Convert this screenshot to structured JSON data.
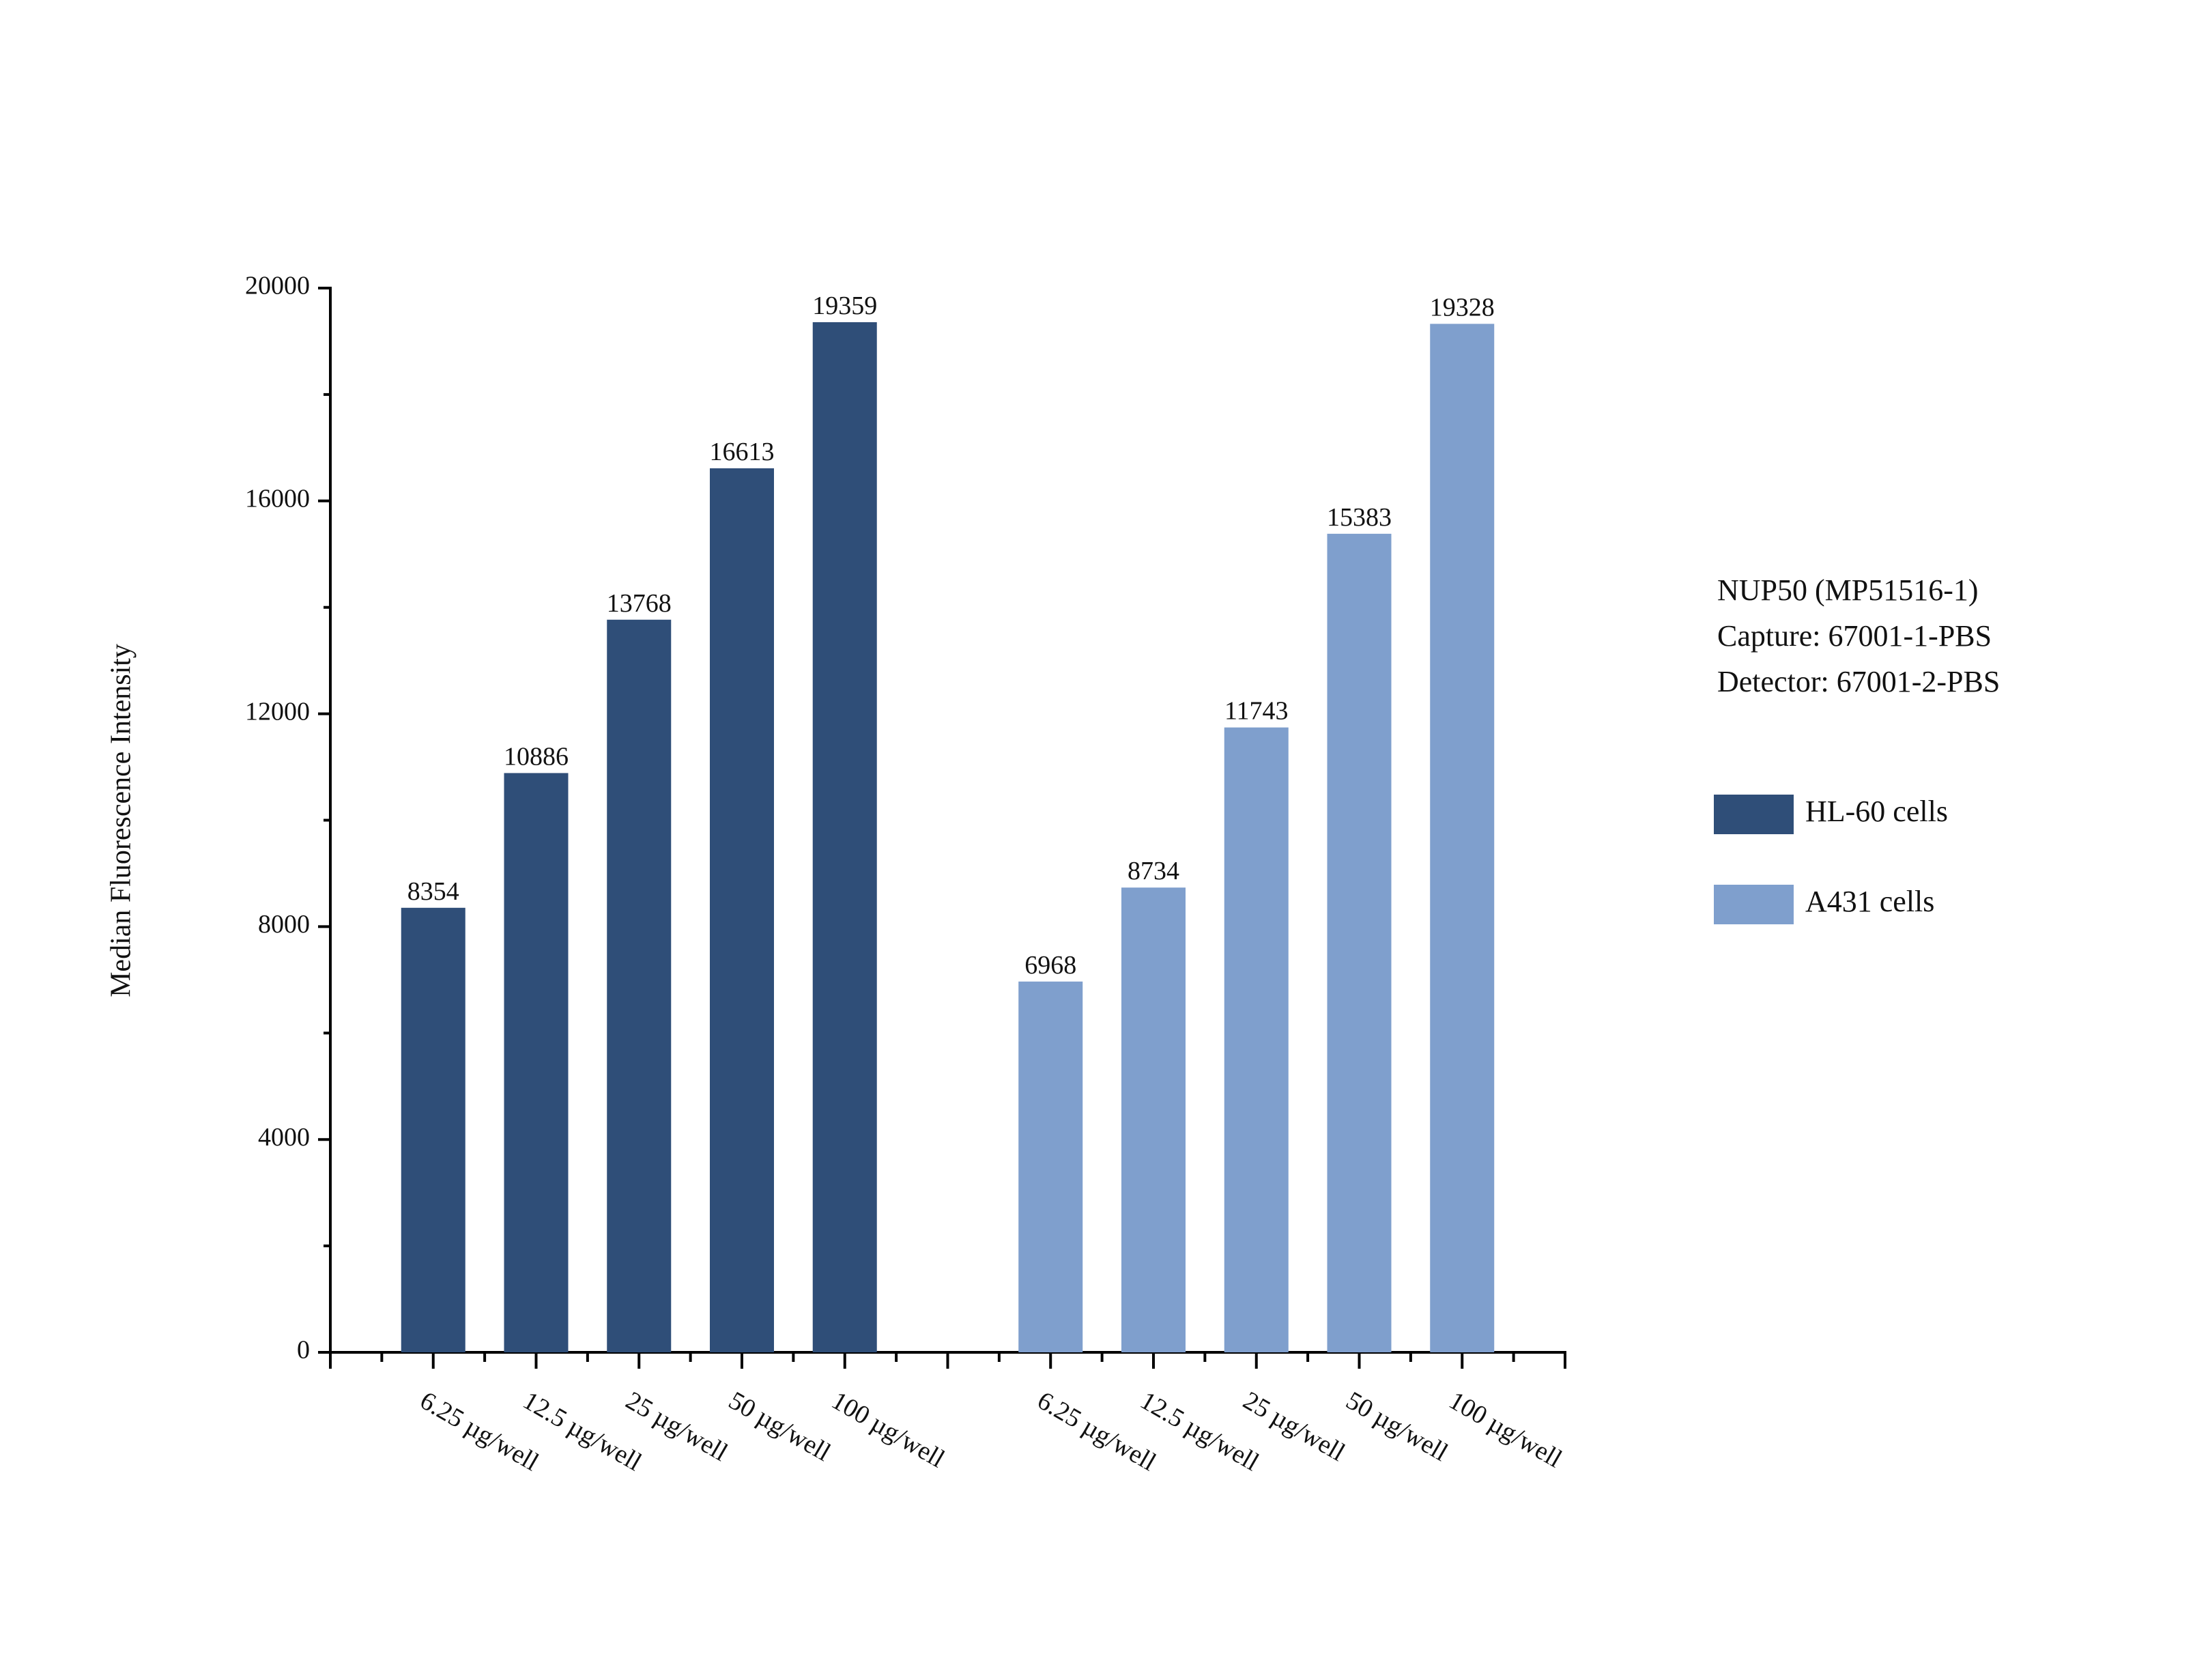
{
  "chart_data": {
    "type": "bar",
    "y_label": "Median Fluorescence Intensity",
    "annotations": [
      "NUP50 (MP51516-1)",
      "Capture: 67001-1-PBS",
      "Detector: 67001-2-PBS"
    ],
    "categories": [
      "6.25 µg/well",
      "12.5 µg/well",
      "25 µg/well",
      "50 µg/well",
      "100 µg/well",
      null,
      "6.25 µg/well",
      "12.5 µg/well",
      "25 µg/well",
      "50 µg/well",
      "100 µg/well"
    ],
    "series": [
      {
        "name": "HL-60 cells",
        "color": "#2f4e78",
        "values": [
          8354,
          10886,
          13768,
          16613,
          19359,
          null,
          null,
          null,
          null,
          null,
          null
        ]
      },
      {
        "name": "A431 cells",
        "color": "#7f9fcd",
        "values": [
          null,
          null,
          null,
          null,
          null,
          null,
          6968,
          8734,
          11743,
          15383,
          19328
        ]
      }
    ],
    "ylim": [
      0,
      20000
    ],
    "yticks": [
      0,
      4000,
      8000,
      12000,
      16000,
      20000
    ],
    "grid": false
  }
}
